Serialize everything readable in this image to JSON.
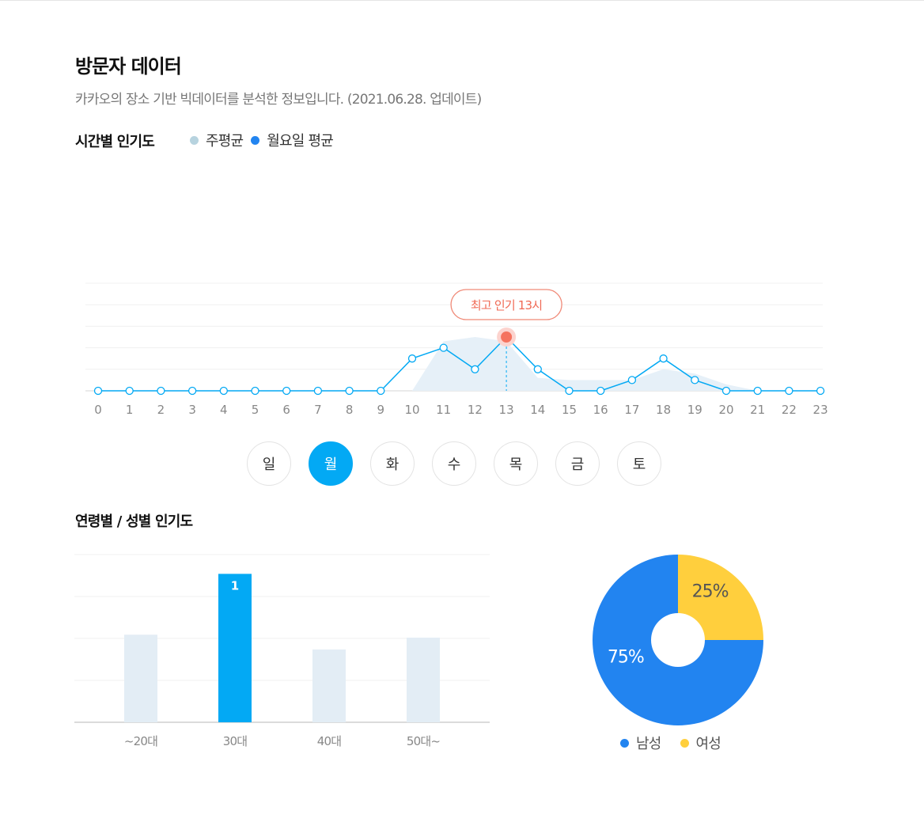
{
  "header": {
    "title": "방문자 데이터",
    "subtitle": "카카오의 장소 기반 빅데이터를 분석한 정보입니다. (2021.06.28. 업데이트)"
  },
  "hourly": {
    "section_title": "시간별 인기도",
    "legend": [
      {
        "label": "주평균",
        "color": "#b7d3df"
      },
      {
        "label": "월요일 평균",
        "color": "#2284f0"
      }
    ],
    "peak_label": "최고 인기 13시"
  },
  "days": {
    "items": [
      "일",
      "월",
      "화",
      "수",
      "목",
      "금",
      "토"
    ],
    "selected": "월"
  },
  "age_gender": {
    "section_title": "연령별 / 성별 인기도",
    "gender_legend": [
      {
        "label": "남성",
        "color": "#2284f0"
      },
      {
        "label": "여성",
        "color": "#ffcf3d"
      }
    ]
  },
  "chart_data": [
    {
      "type": "line",
      "x": [
        0,
        1,
        2,
        3,
        4,
        5,
        6,
        7,
        8,
        9,
        10,
        11,
        12,
        13,
        14,
        15,
        16,
        17,
        18,
        19,
        20,
        21,
        22,
        23
      ],
      "series": [
        {
          "name": "주평균",
          "values": [
            0,
            0,
            0,
            0,
            0,
            0,
            0,
            0,
            0,
            0,
            0,
            2.3,
            2.5,
            2.3,
            0.6,
            0.5,
            0.5,
            0.5,
            1.0,
            0.8,
            0.3,
            0,
            0,
            0
          ]
        },
        {
          "name": "월요일 평균",
          "values": [
            0,
            0,
            0,
            0,
            0,
            0,
            0,
            0,
            0,
            0,
            1.5,
            2.0,
            1.0,
            2.5,
            1.0,
            0,
            0,
            0.5,
            1.5,
            0.5,
            0,
            0,
            0,
            0
          ]
        }
      ],
      "ylim": [
        0,
        5
      ],
      "grid": true,
      "peak_x": 13
    },
    {
      "type": "bar",
      "categories": [
        "~20대",
        "30대",
        "40대",
        "50대~"
      ],
      "values": [
        0.59,
        1,
        0.49,
        0.57
      ],
      "highlight_index": 1,
      "data_labels": [
        "",
        "1",
        "",
        ""
      ],
      "ylim": [
        0,
        1.13
      ],
      "grid": true
    },
    {
      "type": "pie",
      "categories": [
        "남성",
        "여성"
      ],
      "values": [
        75,
        25
      ],
      "data_labels": [
        "75%",
        "25%"
      ],
      "colors": [
        "#2284f0",
        "#ffcf3d"
      ],
      "legend": "bottom"
    }
  ]
}
